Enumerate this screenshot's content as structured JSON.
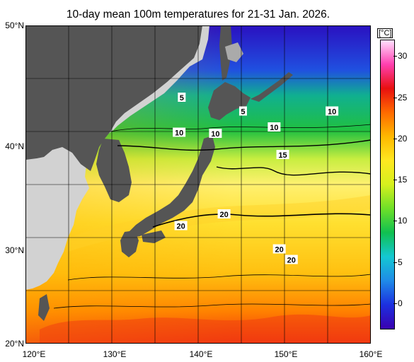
{
  "title": "10-day mean 100m temperatures for 21-31 Jan. 2026.",
  "axes": {
    "lon": {
      "min": 120,
      "max": 160,
      "step": 10,
      "tick_labels": [
        "120°E",
        "130°E",
        "140°E",
        "150°E",
        "160°E"
      ]
    },
    "lat": {
      "min": 20,
      "max": 50,
      "step": 10,
      "tick_labels": [
        "20°N",
        "30°N",
        "40°N",
        "50°N"
      ]
    },
    "grid": true,
    "grid_step_degrees": 5
  },
  "colorbar": {
    "unit": "[°C]",
    "min": -3,
    "max": 32,
    "ticks": [
      0,
      5,
      10,
      15,
      20,
      25,
      30
    ],
    "tick_labels": [
      "0",
      "5",
      "10",
      "15",
      "20",
      "25",
      "30"
    ],
    "colors": [
      "#3a00b0",
      "#1c30e0",
      "#1f8be8",
      "#14c8d2",
      "#10c050",
      "#6ee028",
      "#d6f01e",
      "#ffe820",
      "#ffb800",
      "#ff6a00",
      "#e81010",
      "#ff40b0",
      "#ffe0ff"
    ]
  },
  "colors": {
    "land_japan": "#555555",
    "land_asia": "#d2d2d2",
    "sea_ice_grey": "#aaaaaa"
  },
  "contour_labels": [
    {
      "text": "5",
      "lon": 138.1,
      "lat": 43.2
    },
    {
      "text": "5",
      "lon": 145.2,
      "lat": 41.9
    },
    {
      "text": "10",
      "lon": 155.5,
      "lat": 41.9
    },
    {
      "text": "10",
      "lon": 137.8,
      "lat": 39.9
    },
    {
      "text": "10",
      "lon": 142.0,
      "lat": 39.8
    },
    {
      "text": "10",
      "lon": 148.8,
      "lat": 40.4
    },
    {
      "text": "15",
      "lon": 149.8,
      "lat": 37.8
    },
    {
      "text": "20",
      "lon": 143.0,
      "lat": 32.2
    },
    {
      "text": "20",
      "lon": 138.0,
      "lat": 31.1
    },
    {
      "text": "20",
      "lon": 149.4,
      "lat": 28.9
    },
    {
      "text": "20",
      "lon": 150.8,
      "lat": 27.9
    }
  ]
}
